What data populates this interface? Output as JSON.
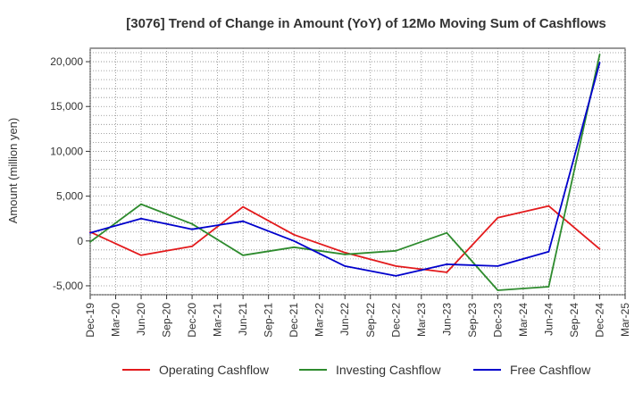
{
  "chart_data": {
    "type": "line",
    "title": "[3076]  Trend of Change in Amount (YoY) of 12Mo Moving Sum of Cashflows",
    "xlabel": "",
    "ylabel": "Amount (million yen)",
    "ylim": [
      -6000,
      21500
    ],
    "yticks": [
      -5000,
      0,
      5000,
      10000,
      15000,
      20000
    ],
    "ytick_labels": [
      "-5,000",
      "0",
      "5,000",
      "10,000",
      "15,000",
      "20,000"
    ],
    "categories": [
      "Dec-19",
      "Mar-20",
      "Jun-20",
      "Sep-20",
      "Dec-20",
      "Mar-21",
      "Jun-21",
      "Sep-21",
      "Dec-21",
      "Mar-22",
      "Jun-22",
      "Sep-22",
      "Dec-22",
      "Mar-23",
      "Jun-23",
      "Sep-23",
      "Dec-23",
      "Mar-24",
      "Jun-24",
      "Sep-24",
      "Dec-24",
      "Mar-25"
    ],
    "grid": true,
    "legend_position": "bottom",
    "series": [
      {
        "name": "Operating Cashflow",
        "color": "#e31a1c",
        "x": [
          "Dec-19",
          "Jun-20",
          "Dec-20",
          "Jun-21",
          "Dec-21",
          "Jun-22",
          "Dec-22",
          "Jun-23",
          "Dec-23",
          "Jun-24",
          "Dec-24"
        ],
        "values": [
          1000,
          -1600,
          -600,
          3800,
          700,
          -1300,
          -2800,
          -3500,
          2600,
          3900,
          -900
        ]
      },
      {
        "name": "Investing Cashflow",
        "color": "#2e8b2e",
        "x": [
          "Dec-19",
          "Jun-20",
          "Dec-20",
          "Jun-21",
          "Dec-21",
          "Jun-22",
          "Dec-22",
          "Jun-23",
          "Dec-23",
          "Jun-24",
          "Dec-24"
        ],
        "values": [
          -100,
          4100,
          1900,
          -1600,
          -700,
          -1500,
          -1100,
          900,
          -5500,
          -5100,
          20800
        ]
      },
      {
        "name": "Free Cashflow",
        "color": "#0000cc",
        "x": [
          "Dec-19",
          "Jun-20",
          "Dec-20",
          "Jun-21",
          "Dec-21",
          "Jun-22",
          "Dec-22",
          "Jun-23",
          "Dec-23",
          "Jun-24",
          "Dec-24"
        ],
        "values": [
          900,
          2500,
          1300,
          2200,
          0,
          -2800,
          -3900,
          -2600,
          -2800,
          -1200,
          19900
        ]
      }
    ]
  }
}
